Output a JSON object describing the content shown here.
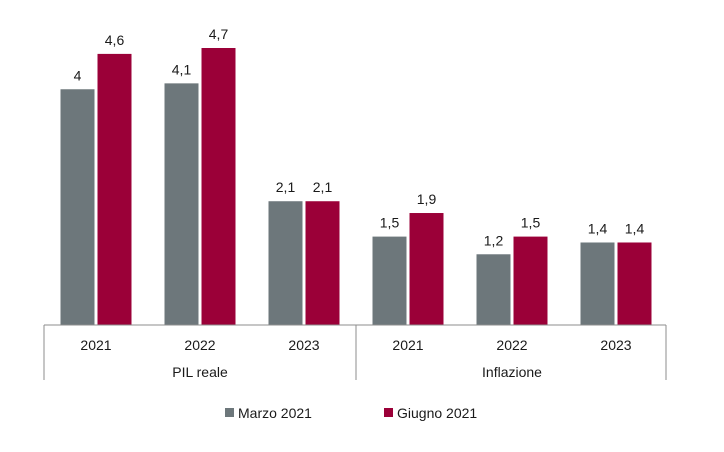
{
  "chart_data": {
    "type": "bar",
    "groups": [
      {
        "name": "PIL reale",
        "categories": [
          "2021",
          "2022",
          "2023"
        ]
      },
      {
        "name": "Inflazione",
        "categories": [
          "2021",
          "2022",
          "2023"
        ]
      }
    ],
    "series": [
      {
        "name": "Marzo 2021",
        "color": "#6d777b",
        "values": [
          4,
          4.1,
          2.1,
          1.5,
          1.2,
          1.4
        ],
        "labels": [
          "4",
          "4,1",
          "2,1",
          "1,5",
          "1,2",
          "1,4"
        ]
      },
      {
        "name": "Giugno 2021",
        "color": "#9b0038",
        "values": [
          4.6,
          4.7,
          2.1,
          1.9,
          1.5,
          1.4
        ],
        "labels": [
          "4,6",
          "4,7",
          "2,1",
          "1,9",
          "1,5",
          "1,4"
        ]
      }
    ],
    "ylim": [
      0,
      4.7
    ],
    "grid": false,
    "legend_position": "bottom"
  }
}
